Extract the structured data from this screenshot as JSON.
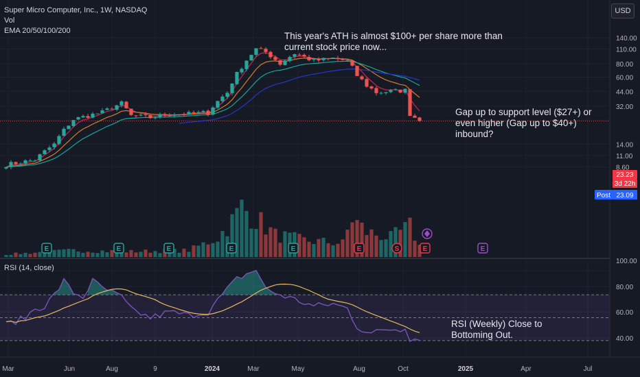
{
  "header": {
    "title": "Super Micro Computer, Inc., 1W, NASDAQ",
    "vol_label": "Vol",
    "ema_label": "EMA 20/50/100/200",
    "currency_button": "USD"
  },
  "rsi_label": "RSI (14, close)",
  "annotations": [
    {
      "lines": [
        "This year's ATH is almost $100+ per share more than",
        "current stock price now..."
      ]
    },
    {
      "lines": [
        "Gap up to support level ($27+) or",
        "even higher (Gap up to $40+)",
        "inbound?"
      ]
    },
    {
      "lines": [
        "RSI (Weekly) Close to",
        "Bottoming Out."
      ]
    }
  ],
  "price_badges": [
    {
      "text": "23.23",
      "color": "#f23645"
    },
    {
      "text": "3d 22h",
      "color": "#f23645"
    },
    {
      "text": "Post",
      "color": "#2962ff"
    },
    {
      "text": "23.09",
      "color": "#2962ff"
    }
  ],
  "event_markers": [
    "E",
    "E",
    "E",
    "E",
    "E",
    "E",
    "E",
    "S",
    "E",
    "E"
  ],
  "colors": {
    "background": "#161a25",
    "up": "#26a69a",
    "down": "#ef5350",
    "ema20": "#d2214d",
    "ema50": "#d77a2b",
    "ema100": "#1aa39a",
    "ema200": "#2338c8",
    "rsi_line": "#7e57c2",
    "rsi_ma": "#e6b95c",
    "text": "#b2b5be"
  },
  "chart_data": {
    "type": "candlestick",
    "timeframe": "1W",
    "y_axis_scale": "log",
    "y_ticks": [
      "140.00",
      "110.00",
      "80.00",
      "60.00",
      "44.00",
      "32.00",
      "14.00",
      "11.00",
      "8.60"
    ],
    "rsi_ticks": [
      "100.00",
      "80.00",
      "60.00",
      "40.00"
    ],
    "rsi_ylim": [
      20,
      100
    ],
    "rsi_levels": [
      70,
      50,
      30
    ],
    "x_ticks": [
      "Mar",
      "Jun",
      "Aug",
      "9",
      "2024",
      "Mar",
      "May",
      "Aug",
      "Oct",
      "2025",
      "Apr",
      "Jul"
    ],
    "price_anchors": [
      {
        "week": 0,
        "close": 9
      },
      {
        "week": 6,
        "close": 10
      },
      {
        "week": 10,
        "close": 14
      },
      {
        "week": 14,
        "close": 24
      },
      {
        "week": 20,
        "close": 28
      },
      {
        "week": 24,
        "close": 34
      },
      {
        "week": 26,
        "close": 26
      },
      {
        "week": 30,
        "close": 25
      },
      {
        "week": 34,
        "close": 27
      },
      {
        "week": 38,
        "close": 27
      },
      {
        "week": 42,
        "close": 28
      },
      {
        "week": 46,
        "close": 43
      },
      {
        "week": 49,
        "close": 75
      },
      {
        "week": 52,
        "close": 110
      },
      {
        "week": 54,
        "close": 103
      },
      {
        "week": 57,
        "close": 80
      },
      {
        "week": 60,
        "close": 100
      },
      {
        "week": 64,
        "close": 85
      },
      {
        "week": 68,
        "close": 90
      },
      {
        "week": 71,
        "close": 85
      },
      {
        "week": 73,
        "close": 62
      },
      {
        "week": 75,
        "close": 50
      },
      {
        "week": 77,
        "close": 43
      },
      {
        "week": 80,
        "close": 44
      },
      {
        "week": 83,
        "close": 45
      },
      {
        "week": 84,
        "close": 27
      },
      {
        "week": 86,
        "close": 23.2
      }
    ],
    "last_price": 23.23,
    "post_market_price": 23.09,
    "ema": {
      "ema20_end": 46,
      "ema50_end": 54,
      "ema100_end": 44,
      "ema200_end": 31
    },
    "rsi_anchors": [
      {
        "week": 0,
        "value": 44
      },
      {
        "week": 4,
        "value": 50
      },
      {
        "week": 6,
        "value": 58
      },
      {
        "week": 8,
        "value": 60
      },
      {
        "week": 10,
        "value": 70
      },
      {
        "week": 12,
        "value": 82
      },
      {
        "week": 14,
        "value": 72
      },
      {
        "week": 16,
        "value": 68
      },
      {
        "week": 18,
        "value": 82
      },
      {
        "week": 20,
        "value": 76
      },
      {
        "week": 24,
        "value": 68
      },
      {
        "week": 26,
        "value": 57
      },
      {
        "week": 30,
        "value": 50
      },
      {
        "week": 34,
        "value": 55
      },
      {
        "week": 38,
        "value": 52
      },
      {
        "week": 42,
        "value": 55
      },
      {
        "week": 45,
        "value": 70
      },
      {
        "week": 48,
        "value": 84
      },
      {
        "week": 50,
        "value": 88
      },
      {
        "week": 52,
        "value": 92
      },
      {
        "week": 54,
        "value": 75
      },
      {
        "week": 57,
        "value": 70
      },
      {
        "week": 60,
        "value": 66
      },
      {
        "week": 64,
        "value": 60
      },
      {
        "week": 68,
        "value": 62
      },
      {
        "week": 71,
        "value": 58
      },
      {
        "week": 73,
        "value": 42
      },
      {
        "week": 76,
        "value": 36
      },
      {
        "week": 79,
        "value": 40
      },
      {
        "week": 82,
        "value": 40
      },
      {
        "week": 83,
        "value": 42
      },
      {
        "week": 84,
        "value": 32
      },
      {
        "week": 86,
        "value": 31
      }
    ],
    "volume_profile": [
      {
        "week": 0,
        "level": 0.05
      },
      {
        "week": 14,
        "level": 0.12
      },
      {
        "week": 26,
        "level": 0.1
      },
      {
        "week": 38,
        "level": 0.12
      },
      {
        "week": 44,
        "level": 0.35
      },
      {
        "week": 47,
        "level": 0.65
      },
      {
        "week": 49,
        "level": 0.9
      },
      {
        "week": 52,
        "level": 0.7
      },
      {
        "week": 56,
        "level": 0.4
      },
      {
        "week": 62,
        "level": 0.3
      },
      {
        "week": 70,
        "level": 0.25
      },
      {
        "week": 72,
        "level": 0.7
      },
      {
        "week": 75,
        "level": 0.45
      },
      {
        "week": 80,
        "level": 0.35
      },
      {
        "week": 84,
        "level": 0.55
      },
      {
        "week": 86,
        "level": 0.2
      }
    ]
  }
}
